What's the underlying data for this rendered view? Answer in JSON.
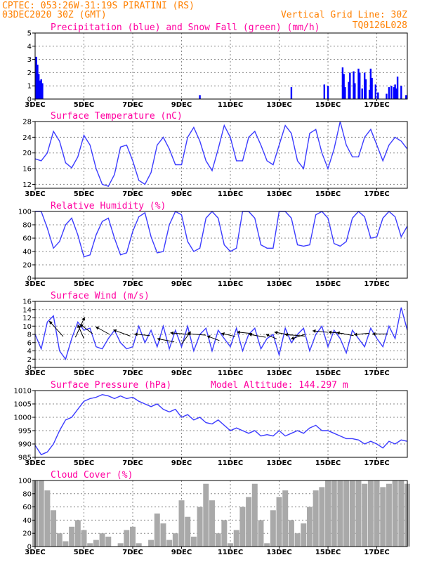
{
  "header": {
    "line1": "CPTEC:   053:26W-31:19S   PIRATINI (RS)",
    "line2": "03DEC2020 30Z (GMT)",
    "grid_note": "Vertical Grid Line: 30Z",
    "code": "TQ0126L028"
  },
  "colors": {
    "header": "#ff8000",
    "title": "#ff00a0",
    "rain": "#0000ff",
    "snow": "#00b000",
    "line": "#3c3cff",
    "cloud": "#a9a9a9",
    "grid": "#888888"
  },
  "x_axis": {
    "ticks": [
      {
        "label": "3DEC",
        "t": 0
      },
      {
        "label": "5DEC",
        "t": 2
      },
      {
        "label": "7DEC",
        "t": 4
      },
      {
        "label": "9DEC",
        "t": 6
      },
      {
        "label": "11DEC",
        "t": 8
      },
      {
        "label": "13DEC",
        "t": 10
      },
      {
        "label": "15DEC",
        "t": 12
      },
      {
        "label": "17DEC",
        "t": 14
      }
    ],
    "range_days": [
      0,
      15.25
    ]
  },
  "chart_data": [
    {
      "type": "bar",
      "title": "Precipitation (blue) and Snow Fall (green) (mm/h)",
      "ylim": [
        0,
        5
      ],
      "yticks": [
        "0",
        "1",
        "2",
        "3",
        "4",
        "5"
      ],
      "series": [
        {
          "name": "Precipitation",
          "color": "#0000ff",
          "bars": [
            [
              0.05,
              3.2
            ],
            [
              0.1,
              2.6
            ],
            [
              0.15,
              1.9
            ],
            [
              0.2,
              1.4
            ],
            [
              0.25,
              1.5
            ],
            [
              0.3,
              1.2
            ],
            [
              6.75,
              0.3
            ],
            [
              10.5,
              0.9
            ],
            [
              11.85,
              1.1
            ],
            [
              12.0,
              1.0
            ],
            [
              12.6,
              2.4
            ],
            [
              12.65,
              1.9
            ],
            [
              12.7,
              0.9
            ],
            [
              12.85,
              1.3
            ],
            [
              12.9,
              2.0
            ],
            [
              13.05,
              2.1
            ],
            [
              13.1,
              1.2
            ],
            [
              13.25,
              2.3
            ],
            [
              13.3,
              2.0
            ],
            [
              13.4,
              0.8
            ],
            [
              13.5,
              2.0
            ],
            [
              13.55,
              1.5
            ],
            [
              13.7,
              0.7
            ],
            [
              13.75,
              2.3
            ],
            [
              13.8,
              1.6
            ],
            [
              13.95,
              1.1
            ],
            [
              14.05,
              0.5
            ],
            [
              14.4,
              0.4
            ],
            [
              14.5,
              0.9
            ],
            [
              14.6,
              1.0
            ],
            [
              14.7,
              0.9
            ],
            [
              14.75,
              1.1
            ],
            [
              14.8,
              0.8
            ],
            [
              14.85,
              1.7
            ],
            [
              15.0,
              1.0
            ],
            [
              15.2,
              0.3
            ]
          ]
        },
        {
          "name": "Snow Fall",
          "color": "#00b000",
          "bars": []
        }
      ]
    },
    {
      "type": "line",
      "title": "Surface Temperature (nC)",
      "ylim": [
        11,
        28
      ],
      "yticks": [
        "12",
        "16",
        "20",
        "24",
        "28"
      ],
      "ytick_values": [
        12,
        16,
        20,
        24,
        28
      ],
      "x": [
        0,
        0.25,
        0.5,
        0.75,
        1,
        1.25,
        1.5,
        1.75,
        2,
        2.25,
        2.5,
        2.75,
        3,
        3.25,
        3.5,
        3.75,
        4,
        4.25,
        4.5,
        4.75,
        5,
        5.25,
        5.5,
        5.75,
        6,
        6.25,
        6.5,
        6.75,
        7,
        7.25,
        7.5,
        7.75,
        8,
        8.25,
        8.5,
        8.75,
        9,
        9.25,
        9.5,
        9.75,
        10,
        10.25,
        10.5,
        10.75,
        11,
        11.25,
        11.5,
        11.75,
        12,
        12.25,
        12.5,
        12.75,
        13,
        13.25,
        13.5,
        13.75,
        14,
        14.25,
        14.5,
        14.75,
        15,
        15.25
      ],
      "values": [
        18.5,
        18,
        20,
        25.5,
        23,
        17.5,
        16.2,
        19,
        24.5,
        22,
        16,
        12,
        11.5,
        14.5,
        21.5,
        22,
        18,
        13,
        12,
        15,
        22,
        24,
        21,
        17,
        17,
        24,
        26.5,
        23,
        18,
        15.5,
        21,
        27,
        24,
        18,
        18,
        24,
        25.5,
        22,
        18,
        17,
        22,
        27,
        25,
        18,
        16,
        25,
        26,
        20,
        16,
        21,
        28,
        22,
        19,
        19,
        24,
        26,
        22,
        18,
        22,
        24,
        23,
        21
      ],
      "series_color": "#3c3cff"
    },
    {
      "type": "line",
      "title": "Relative Humidity (%)",
      "ylim": [
        0,
        100
      ],
      "yticks": [
        "0",
        "20",
        "40",
        "60",
        "80",
        "100"
      ],
      "ytick_values": [
        0,
        20,
        40,
        60,
        80,
        100
      ],
      "x": [
        0,
        0.25,
        0.5,
        0.75,
        1,
        1.25,
        1.5,
        1.75,
        2,
        2.25,
        2.5,
        2.75,
        3,
        3.25,
        3.5,
        3.75,
        4,
        4.25,
        4.5,
        4.75,
        5,
        5.25,
        5.5,
        5.75,
        6,
        6.25,
        6.5,
        6.75,
        7,
        7.25,
        7.5,
        7.75,
        8,
        8.25,
        8.5,
        8.75,
        9,
        9.25,
        9.5,
        9.75,
        10,
        10.25,
        10.5,
        10.75,
        11,
        11.25,
        11.5,
        11.75,
        12,
        12.25,
        12.5,
        12.75,
        13,
        13.25,
        13.5,
        13.75,
        14,
        14.25,
        14.5,
        14.75,
        15,
        15.25
      ],
      "values": [
        100,
        100,
        75,
        45,
        55,
        80,
        90,
        65,
        32,
        35,
        65,
        85,
        90,
        60,
        35,
        38,
        70,
        92,
        98,
        62,
        38,
        40,
        80,
        100,
        95,
        55,
        40,
        45,
        90,
        100,
        90,
        50,
        40,
        45,
        100,
        100,
        90,
        50,
        45,
        45,
        100,
        100,
        90,
        50,
        48,
        50,
        95,
        100,
        90,
        52,
        48,
        55,
        90,
        100,
        92,
        60,
        62,
        90,
        100,
        92,
        62,
        78
      ],
      "series_color": "#3c3cff"
    },
    {
      "type": "line",
      "title": "Surface Wind (m/s)",
      "ylim": [
        0,
        16
      ],
      "yticks": [
        "0",
        "2",
        "4",
        "6",
        "8",
        "10",
        "12",
        "14",
        "16"
      ],
      "ytick_values": [
        0,
        2,
        4,
        6,
        8,
        10,
        12,
        14,
        16
      ],
      "x": [
        0,
        0.25,
        0.5,
        0.75,
        1,
        1.25,
        1.5,
        1.75,
        2,
        2.25,
        2.5,
        2.75,
        3,
        3.25,
        3.5,
        3.75,
        4,
        4.25,
        4.5,
        4.75,
        5,
        5.25,
        5.5,
        5.75,
        6,
        6.25,
        6.5,
        6.75,
        7,
        7.25,
        7.5,
        7.75,
        8,
        8.25,
        8.5,
        8.75,
        9,
        9.25,
        9.5,
        9.75,
        10,
        10.25,
        10.5,
        10.75,
        11,
        11.25,
        11.5,
        11.75,
        12,
        12.25,
        12.5,
        12.75,
        13,
        13.25,
        13.5,
        13.75,
        14,
        14.25,
        14.5,
        14.75,
        15,
        15.25
      ],
      "values": [
        8,
        4.5,
        11,
        12.5,
        4,
        2,
        7,
        11,
        9,
        9.5,
        5,
        4.5,
        7,
        9,
        6,
        4.5,
        5,
        10,
        6,
        9,
        5,
        10,
        4.5,
        9,
        5,
        10,
        4,
        8,
        9.5,
        4,
        9,
        7,
        5,
        9.5,
        4,
        8,
        9.5,
        4.5,
        7,
        8,
        3,
        9.5,
        6,
        8,
        9.5,
        4,
        8,
        10,
        5,
        9,
        7,
        3.5,
        9,
        7,
        5,
        9.5,
        7,
        5,
        10,
        7,
        14.5,
        9
      ],
      "series_color": "#3c3cff",
      "wind_vectors": [
        [
          1.15,
          7.5,
          -0.9,
          1.0
        ],
        [
          1.65,
          7.3,
          0.6,
          1.3
        ],
        [
          2.0,
          7.0,
          -0.4,
          0.9
        ],
        [
          2.35,
          8.2,
          -0.8,
          0.6
        ],
        [
          3.05,
          8.0,
          -0.9,
          0.5
        ],
        [
          3.9,
          7.6,
          -1.1,
          0.4
        ],
        [
          4.7,
          7.7,
          -1.0,
          0.1
        ],
        [
          5.7,
          6.2,
          -1.1,
          0.2
        ],
        [
          6.0,
          5.7,
          0.6,
          0.8
        ],
        [
          6.3,
          8.0,
          -1.2,
          0.1
        ],
        [
          7.0,
          7.8,
          -1.2,
          0.1
        ],
        [
          7.55,
          6.5,
          -0.8,
          0.3
        ],
        [
          8.2,
          7.5,
          -0.9,
          0.2
        ],
        [
          8.9,
          8.2,
          -1.0,
          0.1
        ],
        [
          9.45,
          7.3,
          -1.1,
          0.2
        ],
        [
          9.9,
          6.9,
          -0.7,
          0.3
        ],
        [
          10.5,
          7.8,
          -1.1,
          0.2
        ],
        [
          11.05,
          7.6,
          -1.3,
          0.1
        ],
        [
          11.05,
          8.0,
          -0.9,
          -0.3
        ],
        [
          12.0,
          8.5,
          -1.0,
          0.1
        ],
        [
          12.65,
          8.2,
          -1.0,
          0.1
        ],
        [
          13.05,
          7.7,
          -1.1,
          0.2
        ],
        [
          13.7,
          8.3,
          -1.0,
          -0.1
        ],
        [
          14.45,
          8.1,
          -1.0,
          0.0
        ]
      ]
    },
    {
      "type": "line",
      "title": "Surface Pressure (hPa)",
      "annotation": "Model Altitude: 144.297 m",
      "ylim": [
        985,
        1010
      ],
      "yticks": [
        "985",
        "990",
        "995",
        "1000",
        "1005",
        "1010"
      ],
      "ytick_values": [
        985,
        990,
        995,
        1000,
        1005,
        1010
      ],
      "x": [
        0,
        0.25,
        0.5,
        0.75,
        1,
        1.25,
        1.5,
        1.75,
        2,
        2.25,
        2.5,
        2.75,
        3,
        3.25,
        3.5,
        3.75,
        4,
        4.25,
        4.5,
        4.75,
        5,
        5.25,
        5.5,
        5.75,
        6,
        6.25,
        6.5,
        6.75,
        7,
        7.25,
        7.5,
        7.75,
        8,
        8.25,
        8.5,
        8.75,
        9,
        9.25,
        9.5,
        9.75,
        10,
        10.25,
        10.5,
        10.75,
        11,
        11.25,
        11.5,
        11.75,
        12,
        12.25,
        12.5,
        12.75,
        13,
        13.25,
        13.5,
        13.75,
        14,
        14.25,
        14.5,
        14.75,
        15,
        15.25
      ],
      "values": [
        989.5,
        986,
        987,
        990,
        995,
        999,
        1000,
        1003,
        1006,
        1007,
        1007.5,
        1008.5,
        1008,
        1007,
        1008,
        1007,
        1007.5,
        1006,
        1005,
        1004,
        1005,
        1003,
        1002,
        1003,
        1000,
        1001,
        999,
        1000,
        998,
        997.5,
        999,
        997,
        995,
        996,
        995,
        994,
        995,
        993,
        993.5,
        993,
        995,
        993,
        994,
        995,
        994,
        996,
        997,
        995,
        995,
        994,
        993,
        992,
        992,
        991.5,
        990,
        991,
        990,
        988.5,
        991,
        990,
        991.5,
        991
      ]
    },
    {
      "type": "bar",
      "title": "Cloud Cover (%)",
      "ylim": [
        0,
        100
      ],
      "yticks": [
        "0",
        "20",
        "40",
        "60",
        "80",
        "100"
      ],
      "ytick_values": [
        0,
        20,
        40,
        60,
        80,
        100
      ],
      "x": [
        0,
        0.25,
        0.5,
        0.75,
        1,
        1.25,
        1.5,
        1.75,
        2,
        2.25,
        2.5,
        2.75,
        3,
        3.25,
        3.5,
        3.75,
        4,
        4.25,
        4.5,
        4.75,
        5,
        5.25,
        5.5,
        5.75,
        6,
        6.25,
        6.5,
        6.75,
        7,
        7.25,
        7.5,
        7.75,
        8,
        8.25,
        8.5,
        8.75,
        9,
        9.25,
        9.5,
        9.75,
        10,
        10.25,
        10.5,
        10.75,
        11,
        11.25,
        11.5,
        11.75,
        12,
        12.25,
        12.5,
        12.75,
        13,
        13.25,
        13.5,
        13.75,
        14,
        14.25,
        14.5,
        14.75,
        15,
        15.25
      ],
      "values": [
        100,
        100,
        85,
        55,
        20,
        8,
        30,
        40,
        25,
        5,
        10,
        20,
        15,
        0,
        5,
        25,
        30,
        5,
        0,
        10,
        50,
        35,
        10,
        20,
        70,
        45,
        15,
        60,
        95,
        70,
        20,
        40,
        5,
        25,
        60,
        75,
        95,
        40,
        5,
        55,
        75,
        85,
        40,
        20,
        35,
        60,
        85,
        90,
        100,
        100,
        100,
        100,
        100,
        100,
        95,
        100,
        100,
        90,
        95,
        100,
        100,
        95
      ]
    }
  ]
}
